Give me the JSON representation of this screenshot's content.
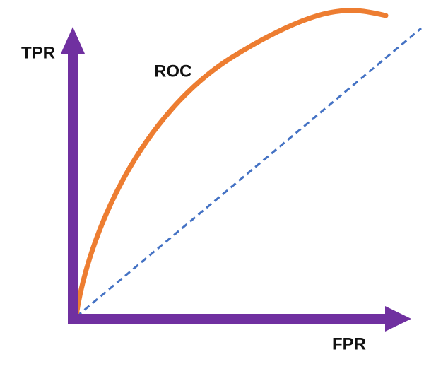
{
  "axes": {
    "y_label": "TPR",
    "x_label": "FPR"
  },
  "curve": {
    "label": "ROC"
  }
}
